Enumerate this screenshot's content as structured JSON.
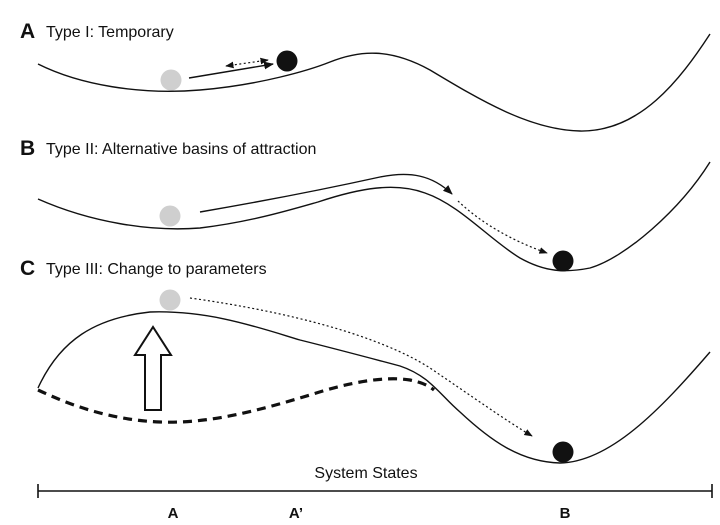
{
  "panels": [
    {
      "letter": "A",
      "title": "Type I: Temporary"
    },
    {
      "letter": "B",
      "title": "Type II: Alternative basins of attraction"
    },
    {
      "letter": "C",
      "title": "Type III: Change to parameters"
    }
  ],
  "axis": {
    "label": "System States",
    "ticks": [
      "A",
      "A’",
      "B"
    ]
  },
  "colors": {
    "ink": "#111111",
    "gray_ball": "#cfcfcf",
    "black_ball": "#111111"
  }
}
